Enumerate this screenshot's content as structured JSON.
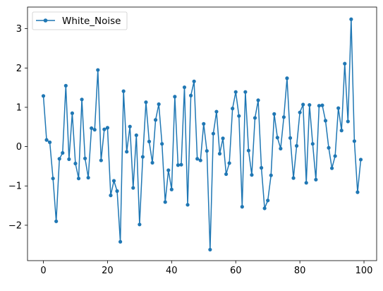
{
  "chart_data": {
    "type": "line",
    "title": "",
    "xlabel": "",
    "ylabel": "",
    "xlim": [
      -4.95,
      103.95
    ],
    "ylim": [
      -2.9,
      3.55
    ],
    "xticks": [
      0,
      20,
      40,
      60,
      80,
      100
    ],
    "yticks": [
      -2,
      -1,
      0,
      1,
      2,
      3
    ],
    "xtick_labels": [
      "0",
      "20",
      "40",
      "60",
      "80",
      "100"
    ],
    "ytick_labels": [
      "−2",
      "−1",
      "0",
      "1",
      "2",
      "3"
    ],
    "legend": {
      "position": "top-left"
    },
    "grid": false,
    "series": [
      {
        "name": "White_Noise",
        "color": "#1f77b4",
        "marker": "circle",
        "x": [
          0,
          1,
          2,
          3,
          4,
          5,
          6,
          7,
          8,
          9,
          10,
          11,
          12,
          13,
          14,
          15,
          16,
          17,
          18,
          19,
          20,
          21,
          22,
          23,
          24,
          25,
          26,
          27,
          28,
          29,
          30,
          31,
          32,
          33,
          34,
          35,
          36,
          37,
          38,
          39,
          40,
          41,
          42,
          43,
          44,
          45,
          46,
          47,
          48,
          49,
          50,
          51,
          52,
          53,
          54,
          55,
          56,
          57,
          58,
          59,
          60,
          61,
          62,
          63,
          64,
          65,
          66,
          67,
          68,
          69,
          70,
          71,
          72,
          73,
          74,
          75,
          76,
          77,
          78,
          79,
          80,
          81,
          82,
          83,
          84,
          85,
          86,
          87,
          88,
          89,
          90,
          91,
          92,
          93,
          94,
          95,
          96,
          97,
          98,
          99
        ],
        "values": [
          1.29,
          0.17,
          0.11,
          -0.81,
          -1.9,
          -0.31,
          -0.16,
          1.55,
          -0.32,
          0.85,
          -0.43,
          -0.81,
          1.2,
          -0.3,
          -0.79,
          0.47,
          0.43,
          1.95,
          -0.35,
          0.44,
          0.48,
          -1.24,
          -0.87,
          -1.13,
          -2.42,
          1.41,
          -0.13,
          0.51,
          -1.05,
          0.29,
          -1.98,
          -0.26,
          1.13,
          0.13,
          -0.41,
          0.68,
          1.08,
          0.07,
          -1.41,
          -0.6,
          -1.09,
          1.27,
          -0.47,
          -0.46,
          1.51,
          -1.48,
          1.3,
          1.66,
          -0.31,
          -0.35,
          0.58,
          -0.11,
          -2.62,
          0.33,
          0.89,
          -0.18,
          0.21,
          -0.7,
          -0.42,
          0.97,
          1.39,
          0.78,
          -1.53,
          1.39,
          -0.1,
          -0.72,
          0.73,
          1.18,
          -0.54,
          -1.57,
          -1.37,
          -0.73,
          0.83,
          0.23,
          -0.05,
          0.75,
          1.74,
          0.22,
          -0.8,
          0.02,
          0.87,
          1.07,
          -0.92,
          1.06,
          0.07,
          -0.84,
          1.04,
          1.05,
          0.66,
          -0.03,
          -0.55,
          -0.24,
          0.98,
          0.41,
          2.11,
          0.64,
          3.24,
          0.14,
          -1.16,
          -0.33
        ]
      }
    ]
  }
}
